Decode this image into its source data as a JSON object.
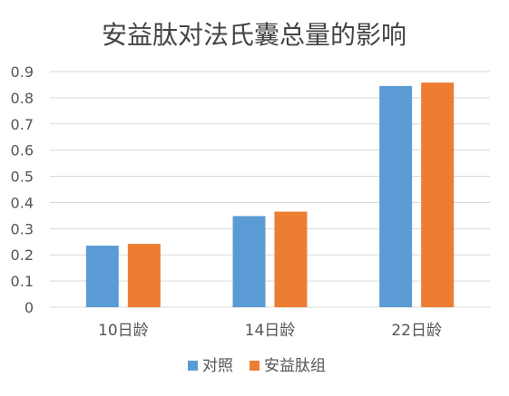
{
  "chart_data": {
    "type": "bar",
    "title": "安益肽对法氏囊总量的影响",
    "xlabel": "",
    "ylabel": "",
    "categories": [
      "10日龄",
      "14日龄",
      "22日龄"
    ],
    "series": [
      {
        "name": "对照",
        "values": [
          0.235,
          0.348,
          0.845
        ],
        "color": "#5b9bd5"
      },
      {
        "name": "安益肽组",
        "values": [
          0.242,
          0.365,
          0.858
        ],
        "color": "#ed7d31"
      }
    ],
    "ylim": [
      0,
      0.9
    ],
    "yticks": [
      "0",
      "0.1",
      "0.2",
      "0.3",
      "0.4",
      "0.5",
      "0.6",
      "0.7",
      "0.8",
      "0.9"
    ],
    "grid": true,
    "legend_position": "bottom"
  }
}
